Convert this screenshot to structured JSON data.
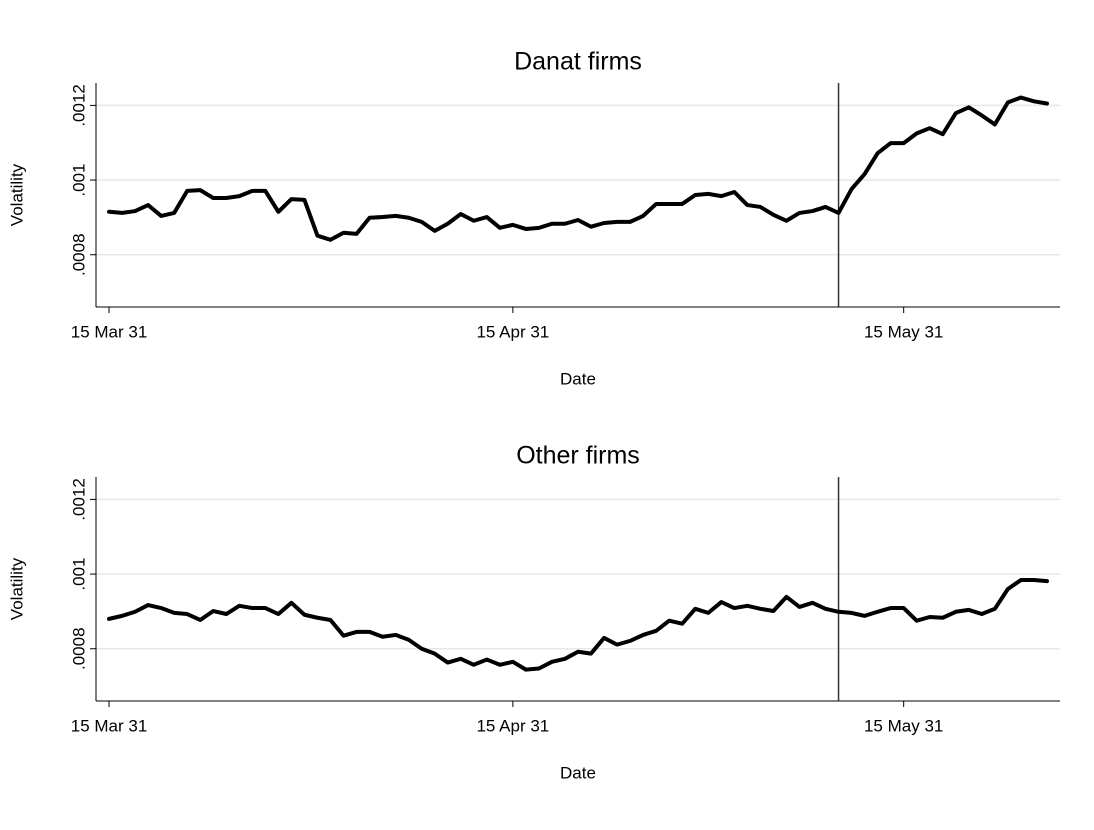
{
  "chart_data": [
    {
      "type": "line",
      "title": "Danat firms",
      "xlabel": "Date",
      "ylabel": "Volatility",
      "color": "#000000",
      "grid": true,
      "vline": "10 May 31",
      "x": [
        "15 Mar 31",
        "16 Mar 31",
        "17 Mar 31",
        "18 Mar 31",
        "19 Mar 31",
        "20 Mar 31",
        "21 Mar 31",
        "22 Mar 31",
        "23 Mar 31",
        "24 Mar 31",
        "25 Mar 31",
        "26 Mar 31",
        "27 Mar 31",
        "28 Mar 31",
        "29 Mar 31",
        "30 Mar 31",
        "31 Mar 31",
        "1 Apr 31",
        "2 Apr 31",
        "3 Apr 31",
        "4 Apr 31",
        "5 Apr 31",
        "6 Apr 31",
        "7 Apr 31",
        "8 Apr 31",
        "9 Apr 31",
        "10 Apr 31",
        "11 Apr 31",
        "12 Apr 31",
        "13 Apr 31",
        "14 Apr 31",
        "15 Apr 31",
        "16 Apr 31",
        "17 Apr 31",
        "18 Apr 31",
        "19 Apr 31",
        "20 Apr 31",
        "21 Apr 31",
        "22 Apr 31",
        "23 Apr 31",
        "24 Apr 31",
        "25 Apr 31",
        "26 Apr 31",
        "27 Apr 31",
        "28 Apr 31",
        "29 Apr 31",
        "30 Apr 31",
        "1 May 31",
        "2 May 31",
        "3 May 31",
        "4 May 31",
        "5 May 31",
        "6 May 31",
        "7 May 31",
        "8 May 31",
        "9 May 31",
        "10 May 31",
        "11 May 31",
        "12 May 31",
        "13 May 31",
        "14 May 31",
        "15 May 31",
        "16 May 31",
        "17 May 31",
        "18 May 31",
        "19 May 31",
        "20 May 31",
        "21 May 31",
        "22 May 31",
        "23 May 31",
        "24 May 31",
        "25 May 31",
        "26 May 31"
      ],
      "values": [
        0.000915,
        0.000912,
        0.000917,
        0.000933,
        0.000904,
        0.000912,
        0.000971,
        0.000973,
        0.000952,
        0.000952,
        0.000957,
        0.000971,
        0.000971,
        0.000915,
        0.000949,
        0.000947,
        0.000851,
        0.00084,
        0.000859,
        0.000856,
        0.000899,
        0.000901,
        0.000904,
        0.000899,
        0.000888,
        0.000864,
        0.000883,
        0.000909,
        0.000891,
        0.000901,
        0.000872,
        0.00088,
        0.000869,
        0.000872,
        0.000883,
        0.000883,
        0.000893,
        0.000875,
        0.000885,
        0.000888,
        0.000888,
        0.000904,
        0.000936,
        0.000936,
        0.000936,
        0.00096,
        0.000963,
        0.000957,
        0.000968,
        0.000933,
        0.000928,
        0.000907,
        0.000891,
        0.000912,
        0.000917,
        0.000928,
        0.000912,
        0.000976,
        0.001016,
        0.001072,
        0.001099,
        0.001099,
        0.001125,
        0.001139,
        0.001123,
        0.001179,
        0.001195,
        0.001173,
        0.001149,
        0.001208,
        0.001221,
        0.001211,
        0.001205
      ],
      "xlim": [
        "14 Mar 31",
        "27 May 31"
      ],
      "xticks": [
        "15 Mar 31",
        "15 Apr 31",
        "15 May 31"
      ],
      "ylim": [
        0.00066,
        0.00126
      ],
      "yticks": [
        {
          "value": 0.0008,
          "label": ".0008"
        },
        {
          "value": 0.001,
          "label": ".001"
        },
        {
          "value": 0.0012,
          "label": ".0012"
        }
      ]
    },
    {
      "type": "line",
      "title": "Other firms",
      "xlabel": "Date",
      "ylabel": "Volatility",
      "color": "#000000",
      "grid": true,
      "vline": "10 May 31",
      "x": [
        "15 Mar 31",
        "16 Mar 31",
        "17 Mar 31",
        "18 Mar 31",
        "19 Mar 31",
        "20 Mar 31",
        "21 Mar 31",
        "22 Mar 31",
        "23 Mar 31",
        "24 Mar 31",
        "25 Mar 31",
        "26 Mar 31",
        "27 Mar 31",
        "28 Mar 31",
        "29 Mar 31",
        "30 Mar 31",
        "31 Mar 31",
        "1 Apr 31",
        "2 Apr 31",
        "3 Apr 31",
        "4 Apr 31",
        "5 Apr 31",
        "6 Apr 31",
        "7 Apr 31",
        "8 Apr 31",
        "9 Apr 31",
        "10 Apr 31",
        "11 Apr 31",
        "12 Apr 31",
        "13 Apr 31",
        "14 Apr 31",
        "15 Apr 31",
        "16 Apr 31",
        "17 Apr 31",
        "18 Apr 31",
        "19 Apr 31",
        "20 Apr 31",
        "21 Apr 31",
        "22 Apr 31",
        "23 Apr 31",
        "24 Apr 31",
        "25 Apr 31",
        "26 Apr 31",
        "27 Apr 31",
        "28 Apr 31",
        "29 Apr 31",
        "30 Apr 31",
        "1 May 31",
        "2 May 31",
        "3 May 31",
        "4 May 31",
        "5 May 31",
        "6 May 31",
        "7 May 31",
        "8 May 31",
        "9 May 31",
        "10 May 31",
        "11 May 31",
        "12 May 31",
        "13 May 31",
        "14 May 31",
        "15 May 31",
        "16 May 31",
        "17 May 31",
        "18 May 31",
        "19 May 31",
        "20 May 31",
        "21 May 31",
        "22 May 31",
        "23 May 31",
        "24 May 31",
        "25 May 31",
        "26 May 31"
      ],
      "values": [
        0.00088,
        0.000888,
        0.000899,
        0.000917,
        0.000909,
        0.000896,
        0.000893,
        0.000877,
        0.000901,
        0.000893,
        0.000915,
        0.000909,
        0.000909,
        0.000893,
        0.000923,
        0.000891,
        0.000883,
        0.000877,
        0.000835,
        0.000845,
        0.000845,
        0.000832,
        0.000837,
        0.000824,
        0.0008,
        0.000787,
        0.000763,
        0.000773,
        0.000757,
        0.000771,
        0.000757,
        0.000765,
        0.000744,
        0.000747,
        0.000765,
        0.000773,
        0.000792,
        0.000787,
        0.000829,
        0.000811,
        0.000821,
        0.000837,
        0.000848,
        0.000875,
        0.000867,
        0.000907,
        0.000896,
        0.000925,
        0.000909,
        0.000915,
        0.000907,
        0.000901,
        0.000939,
        0.000912,
        0.000923,
        0.000907,
        0.000899,
        0.000896,
        0.000888,
        0.000899,
        0.000909,
        0.000909,
        0.000875,
        0.000885,
        0.000883,
        0.000899,
        0.000904,
        0.000893,
        0.000907,
        0.00096,
        0.000984,
        0.000984,
        0.000981
      ],
      "xlim": [
        "14 Mar 31",
        "27 May 31"
      ],
      "xticks": [
        "15 Mar 31",
        "15 Apr 31",
        "15 May 31"
      ],
      "ylim": [
        0.00066,
        0.00126
      ],
      "yticks": [
        {
          "value": 0.0008,
          "label": ".0008"
        },
        {
          "value": 0.001,
          "label": ".001"
        },
        {
          "value": 0.0012,
          "label": ".0012"
        }
      ]
    }
  ]
}
